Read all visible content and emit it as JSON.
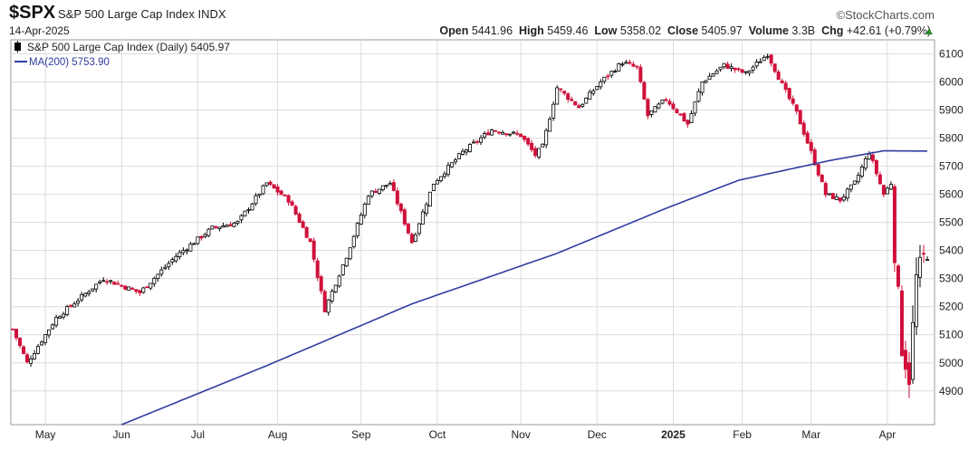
{
  "header": {
    "symbol": "$SPX",
    "name": "S&P 500 Large Cap Index",
    "exchange": "INDX",
    "date": "14-Apr-2025",
    "brand": "©StockCharts.com",
    "open_label": "Open",
    "open": "5441.96",
    "high_label": "High",
    "high": "5459.46",
    "low_label": "Low",
    "low": "5358.02",
    "close_label": "Close",
    "close": "5405.97",
    "volume_label": "Volume",
    "volume": "3.3B",
    "chg_label": "Chg",
    "chg": "+42.61 (+0.79%)"
  },
  "legend": {
    "price": "S&P 500 Large Cap Index (Daily) 5405.97",
    "ma": "MA(200) 5753.90"
  },
  "colors": {
    "up": "#000000",
    "down": "#d0103a",
    "ma": "#2f3da0",
    "grid": "#dcdcdc"
  },
  "chart_data": {
    "type": "candlestick",
    "x_labels": [
      "May",
      "Jun",
      "Jul",
      "Aug",
      "Sep",
      "Oct",
      "Nov",
      "Dec",
      "2025",
      "Feb",
      "Mar",
      "Apr"
    ],
    "y_ticks": [
      4900,
      5000,
      5100,
      5200,
      5300,
      5400,
      5500,
      5600,
      5700,
      5800,
      5900,
      6000,
      6100
    ],
    "ylim": [
      4780,
      6150
    ],
    "grid": true,
    "price_anchors": [
      {
        "t": 0,
        "v": 5120
      },
      {
        "t": 4,
        "v": 5000
      },
      {
        "t": 12,
        "v": 5160
      },
      {
        "t": 25,
        "v": 5300
      },
      {
        "t": 35,
        "v": 5250
      },
      {
        "t": 45,
        "v": 5380
      },
      {
        "t": 55,
        "v": 5480
      },
      {
        "t": 62,
        "v": 5500
      },
      {
        "t": 70,
        "v": 5640
      },
      {
        "t": 76,
        "v": 5580
      },
      {
        "t": 82,
        "v": 5430
      },
      {
        "t": 86,
        "v": 5190
      },
      {
        "t": 92,
        "v": 5380
      },
      {
        "t": 98,
        "v": 5600
      },
      {
        "t": 104,
        "v": 5640
      },
      {
        "t": 110,
        "v": 5430
      },
      {
        "t": 116,
        "v": 5640
      },
      {
        "t": 124,
        "v": 5750
      },
      {
        "t": 132,
        "v": 5830
      },
      {
        "t": 140,
        "v": 5810
      },
      {
        "t": 144,
        "v": 5740
      },
      {
        "t": 146,
        "v": 5770
      },
      {
        "t": 150,
        "v": 5980
      },
      {
        "t": 156,
        "v": 5910
      },
      {
        "t": 162,
        "v": 6000
      },
      {
        "t": 168,
        "v": 6070
      },
      {
        "t": 172,
        "v": 6050
      },
      {
        "t": 175,
        "v": 5880
      },
      {
        "t": 180,
        "v": 5940
      },
      {
        "t": 186,
        "v": 5850
      },
      {
        "t": 190,
        "v": 6000
      },
      {
        "t": 196,
        "v": 6060
      },
      {
        "t": 202,
        "v": 6030
      },
      {
        "t": 208,
        "v": 6100
      },
      {
        "t": 212,
        "v": 5990
      },
      {
        "t": 216,
        "v": 5890
      },
      {
        "t": 220,
        "v": 5750
      },
      {
        "t": 224,
        "v": 5600
      },
      {
        "t": 228,
        "v": 5580
      },
      {
        "t": 232,
        "v": 5640
      },
      {
        "t": 236,
        "v": 5750
      },
      {
        "t": 240,
        "v": 5600
      },
      {
        "t": 242,
        "v": 5640
      },
      {
        "t": 243,
        "v": 5400
      },
      {
        "t": 245,
        "v": 5060
      },
      {
        "t": 247,
        "v": 4950
      },
      {
        "t": 249,
        "v": 5300
      },
      {
        "t": 252,
        "v": 5405.97
      }
    ],
    "ma200_anchors": [
      {
        "t": 0,
        "v": 4680
      },
      {
        "t": 30,
        "v": 4780
      },
      {
        "t": 70,
        "v": 4990
      },
      {
        "t": 110,
        "v": 5210
      },
      {
        "t": 150,
        "v": 5390
      },
      {
        "t": 180,
        "v": 5550
      },
      {
        "t": 200,
        "v": 5650
      },
      {
        "t": 225,
        "v": 5720
      },
      {
        "t": 240,
        "v": 5755
      },
      {
        "t": 252,
        "v": 5753.9
      }
    ]
  }
}
